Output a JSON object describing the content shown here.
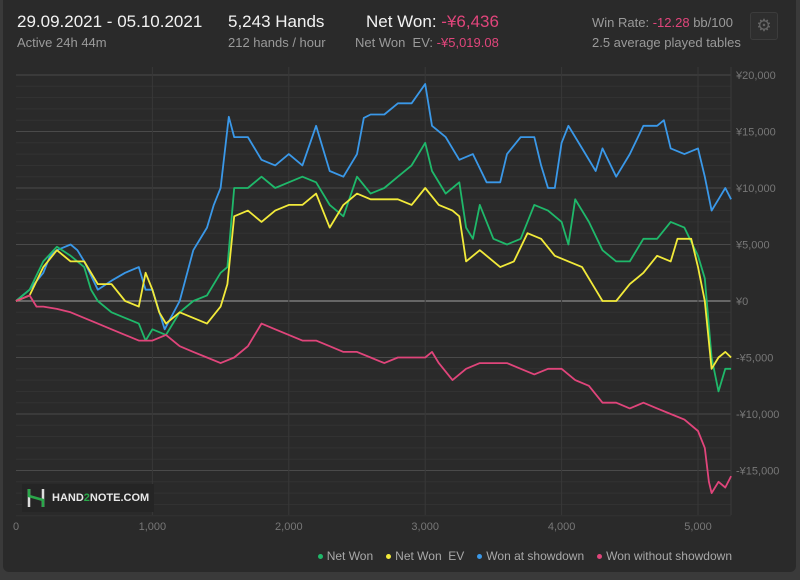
{
  "header": {
    "date_range": "29.09.2021 - 05.10.2021",
    "active": "Active 24h 44m",
    "hands": "5,243 Hands",
    "hands_per_hour": "212 hands / hour",
    "net_won_label": "Net Won:",
    "net_won_value": "-¥6,436",
    "net_won_ev_label": "Net Won  EV:",
    "net_won_ev_value": "-¥5,019.08",
    "win_rate_label": "Win Rate:",
    "win_rate_value": "-12.28",
    "win_rate_unit": "bb/100",
    "tables": "2.5 average played tables",
    "settings_icon": "gear-icon"
  },
  "watermark": {
    "text_pre": "HAND",
    "text_mid": "2",
    "text_post": "NOTE.COM"
  },
  "colors": {
    "net_won": "#1fb86a",
    "net_won_ev": "#f2ea3a",
    "showdown": "#3a98e8",
    "non_showdown": "#e0457b",
    "negative_text": "#e0457b"
  },
  "chart_data": {
    "type": "line",
    "xlim": [
      0,
      5243
    ],
    "ylim": [
      -19000,
      20700
    ],
    "grid": true,
    "legend": "bottom-right",
    "x_ticks": [
      0,
      1000,
      2000,
      3000,
      4000,
      5000
    ],
    "x_tick_labels": [
      "0",
      "1,000",
      "2,000",
      "3,000",
      "4,000",
      "5,000"
    ],
    "y_ticks": [
      20000,
      15000,
      10000,
      5000,
      0,
      -5000,
      -10000,
      -15000
    ],
    "y_tick_labels": [
      "¥20,000",
      "¥15,000",
      "¥10,000",
      "¥5,000",
      "¥0",
      "-¥5,000",
      "-¥10,000",
      "-¥15,000"
    ],
    "series": [
      {
        "name": "Won at showdown",
        "color": "#3a98e8",
        "points": [
          [
            0,
            0
          ],
          [
            100,
            1000
          ],
          [
            200,
            2500
          ],
          [
            250,
            4000
          ],
          [
            300,
            4500
          ],
          [
            400,
            5000
          ],
          [
            450,
            4500
          ],
          [
            500,
            3500
          ],
          [
            600,
            1000
          ],
          [
            700,
            1800
          ],
          [
            800,
            2500
          ],
          [
            900,
            3000
          ],
          [
            950,
            1000
          ],
          [
            1000,
            1000
          ],
          [
            1090,
            -2500
          ],
          [
            1200,
            0
          ],
          [
            1300,
            4500
          ],
          [
            1400,
            6500
          ],
          [
            1450,
            8500
          ],
          [
            1500,
            10000
          ],
          [
            1560,
            16300
          ],
          [
            1600,
            14500
          ],
          [
            1700,
            14500
          ],
          [
            1800,
            12500
          ],
          [
            1900,
            12000
          ],
          [
            2000,
            13000
          ],
          [
            2100,
            12000
          ],
          [
            2200,
            15500
          ],
          [
            2300,
            11500
          ],
          [
            2400,
            11000
          ],
          [
            2500,
            13000
          ],
          [
            2550,
            16200
          ],
          [
            2600,
            16500
          ],
          [
            2700,
            16500
          ],
          [
            2800,
            17500
          ],
          [
            2900,
            17500
          ],
          [
            3000,
            19200
          ],
          [
            3050,
            15500
          ],
          [
            3150,
            14500
          ],
          [
            3250,
            12500
          ],
          [
            3350,
            13000
          ],
          [
            3450,
            10500
          ],
          [
            3550,
            10500
          ],
          [
            3600,
            13000
          ],
          [
            3700,
            14500
          ],
          [
            3800,
            14500
          ],
          [
            3850,
            12000
          ],
          [
            3900,
            10000
          ],
          [
            3950,
            10000
          ],
          [
            4000,
            14000
          ],
          [
            4050,
            15500
          ],
          [
            4150,
            13500
          ],
          [
            4250,
            11500
          ],
          [
            4300,
            13500
          ],
          [
            4400,
            11000
          ],
          [
            4500,
            13000
          ],
          [
            4600,
            15500
          ],
          [
            4700,
            15500
          ],
          [
            4750,
            16000
          ],
          [
            4800,
            13500
          ],
          [
            4900,
            13000
          ],
          [
            5000,
            13500
          ],
          [
            5050,
            11000
          ],
          [
            5100,
            8000
          ],
          [
            5150,
            9000
          ],
          [
            5200,
            10000
          ],
          [
            5243,
            9000
          ]
        ]
      },
      {
        "name": "Net Won",
        "color": "#1fb86a",
        "points": [
          [
            0,
            0
          ],
          [
            100,
            1000
          ],
          [
            200,
            3500
          ],
          [
            300,
            4800
          ],
          [
            400,
            4000
          ],
          [
            500,
            3000
          ],
          [
            550,
            1000
          ],
          [
            600,
            0
          ],
          [
            700,
            -1000
          ],
          [
            800,
            -1500
          ],
          [
            900,
            -2000
          ],
          [
            950,
            -3500
          ],
          [
            1000,
            -2500
          ],
          [
            1100,
            -3000
          ],
          [
            1200,
            -1000
          ],
          [
            1300,
            0
          ],
          [
            1400,
            500
          ],
          [
            1500,
            2500
          ],
          [
            1550,
            3000
          ],
          [
            1600,
            10000
          ],
          [
            1700,
            10000
          ],
          [
            1800,
            11000
          ],
          [
            1900,
            10000
          ],
          [
            2000,
            10500
          ],
          [
            2100,
            11000
          ],
          [
            2200,
            10500
          ],
          [
            2300,
            8500
          ],
          [
            2400,
            7500
          ],
          [
            2500,
            11000
          ],
          [
            2600,
            9500
          ],
          [
            2700,
            10000
          ],
          [
            2800,
            11000
          ],
          [
            2900,
            12000
          ],
          [
            3000,
            14000
          ],
          [
            3050,
            11500
          ],
          [
            3150,
            9500
          ],
          [
            3250,
            10500
          ],
          [
            3300,
            6500
          ],
          [
            3350,
            5500
          ],
          [
            3400,
            8500
          ],
          [
            3500,
            5500
          ],
          [
            3600,
            5000
          ],
          [
            3700,
            5500
          ],
          [
            3800,
            8500
          ],
          [
            3900,
            8000
          ],
          [
            4000,
            7000
          ],
          [
            4050,
            5000
          ],
          [
            4100,
            9000
          ],
          [
            4200,
            7000
          ],
          [
            4300,
            4500
          ],
          [
            4400,
            3500
          ],
          [
            4500,
            3500
          ],
          [
            4600,
            5500
          ],
          [
            4700,
            5500
          ],
          [
            4800,
            7000
          ],
          [
            4900,
            6500
          ],
          [
            5000,
            4000
          ],
          [
            5050,
            2000
          ],
          [
            5100,
            -5000
          ],
          [
            5150,
            -8000
          ],
          [
            5200,
            -6000
          ],
          [
            5243,
            -6000
          ]
        ]
      },
      {
        "name": "Net Won  EV",
        "color": "#f2ea3a",
        "points": [
          [
            0,
            0
          ],
          [
            100,
            500
          ],
          [
            200,
            3000
          ],
          [
            300,
            4500
          ],
          [
            400,
            3500
          ],
          [
            500,
            3500
          ],
          [
            600,
            1500
          ],
          [
            700,
            1500
          ],
          [
            800,
            0
          ],
          [
            900,
            -500
          ],
          [
            950,
            2500
          ],
          [
            1000,
            1000
          ],
          [
            1050,
            -1000
          ],
          [
            1100,
            -2000
          ],
          [
            1200,
            -1000
          ],
          [
            1300,
            -1500
          ],
          [
            1400,
            -2000
          ],
          [
            1500,
            -500
          ],
          [
            1550,
            1500
          ],
          [
            1600,
            7500
          ],
          [
            1700,
            8000
          ],
          [
            1800,
            7000
          ],
          [
            1900,
            8000
          ],
          [
            2000,
            8500
          ],
          [
            2100,
            8500
          ],
          [
            2200,
            9500
          ],
          [
            2300,
            6500
          ],
          [
            2400,
            8500
          ],
          [
            2500,
            9500
          ],
          [
            2600,
            9000
          ],
          [
            2700,
            9000
          ],
          [
            2800,
            9000
          ],
          [
            2900,
            8500
          ],
          [
            3000,
            10000
          ],
          [
            3100,
            8500
          ],
          [
            3200,
            8000
          ],
          [
            3250,
            7500
          ],
          [
            3300,
            3500
          ],
          [
            3400,
            4500
          ],
          [
            3500,
            3500
          ],
          [
            3550,
            3000
          ],
          [
            3650,
            3500
          ],
          [
            3750,
            6000
          ],
          [
            3850,
            5500
          ],
          [
            3950,
            4000
          ],
          [
            4050,
            3500
          ],
          [
            4150,
            3000
          ],
          [
            4250,
            1000
          ],
          [
            4300,
            0
          ],
          [
            4400,
            0
          ],
          [
            4500,
            1500
          ],
          [
            4600,
            2500
          ],
          [
            4700,
            4000
          ],
          [
            4800,
            3500
          ],
          [
            4850,
            5500
          ],
          [
            4950,
            5500
          ],
          [
            5000,
            3000
          ],
          [
            5050,
            0
          ],
          [
            5100,
            -6000
          ],
          [
            5150,
            -5000
          ],
          [
            5200,
            -4500
          ],
          [
            5243,
            -5000
          ]
        ]
      },
      {
        "name": "Won without showdown",
        "color": "#e0457b",
        "points": [
          [
            0,
            0
          ],
          [
            100,
            500
          ],
          [
            150,
            -500
          ],
          [
            200,
            -500
          ],
          [
            300,
            -700
          ],
          [
            400,
            -1000
          ],
          [
            500,
            -1500
          ],
          [
            600,
            -2000
          ],
          [
            700,
            -2500
          ],
          [
            800,
            -3000
          ],
          [
            900,
            -3500
          ],
          [
            1000,
            -3500
          ],
          [
            1100,
            -3000
          ],
          [
            1200,
            -4000
          ],
          [
            1300,
            -4500
          ],
          [
            1400,
            -5000
          ],
          [
            1500,
            -5500
          ],
          [
            1600,
            -5000
          ],
          [
            1700,
            -4000
          ],
          [
            1800,
            -2000
          ],
          [
            1900,
            -2500
          ],
          [
            2000,
            -3000
          ],
          [
            2100,
            -3500
          ],
          [
            2200,
            -3500
          ],
          [
            2300,
            -4000
          ],
          [
            2400,
            -4500
          ],
          [
            2500,
            -4500
          ],
          [
            2600,
            -5000
          ],
          [
            2700,
            -5500
          ],
          [
            2800,
            -5000
          ],
          [
            2900,
            -5000
          ],
          [
            3000,
            -5000
          ],
          [
            3050,
            -4500
          ],
          [
            3100,
            -5500
          ],
          [
            3200,
            -7000
          ],
          [
            3300,
            -6000
          ],
          [
            3400,
            -5500
          ],
          [
            3500,
            -5500
          ],
          [
            3600,
            -5500
          ],
          [
            3700,
            -6000
          ],
          [
            3800,
            -6500
          ],
          [
            3900,
            -6000
          ],
          [
            4000,
            -6000
          ],
          [
            4100,
            -7000
          ],
          [
            4200,
            -7500
          ],
          [
            4300,
            -9000
          ],
          [
            4400,
            -9000
          ],
          [
            4500,
            -9500
          ],
          [
            4600,
            -9000
          ],
          [
            4700,
            -9500
          ],
          [
            4800,
            -10000
          ],
          [
            4900,
            -10500
          ],
          [
            5000,
            -11500
          ],
          [
            5050,
            -13000
          ],
          [
            5080,
            -16000
          ],
          [
            5100,
            -17000
          ],
          [
            5150,
            -16000
          ],
          [
            5200,
            -16500
          ],
          [
            5243,
            -15500
          ]
        ]
      }
    ],
    "legend_order": [
      "Net Won",
      "Net Won  EV",
      "Won at showdown",
      "Won without showdown"
    ]
  }
}
